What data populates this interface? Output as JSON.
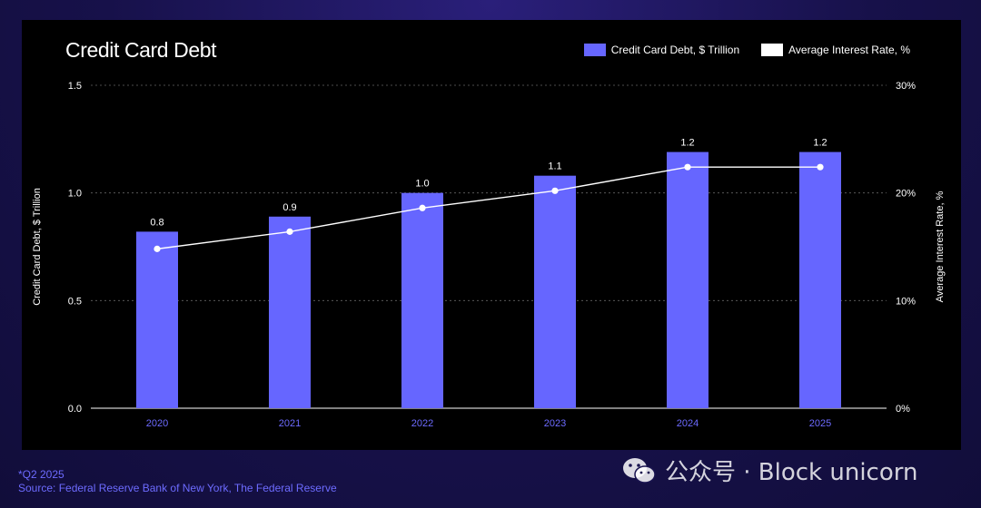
{
  "chart_data": {
    "type": "bar",
    "title": "Credit Card Debt",
    "categories": [
      "2020",
      "2021",
      "2022",
      "2023",
      "2024",
      "2025"
    ],
    "series": [
      {
        "name": "Credit Card Debt, $ Trillion",
        "type": "bar",
        "axis": "left",
        "values": [
          0.82,
          0.89,
          1.0,
          1.08,
          1.19,
          1.19
        ],
        "data_labels": [
          "0.8",
          "0.9",
          "1.0",
          "1.1",
          "1.2",
          "1.2"
        ],
        "color": "#6666ff"
      },
      {
        "name": "Average Interest Rate, %",
        "type": "line",
        "axis": "right",
        "values": [
          14.8,
          16.4,
          18.6,
          20.2,
          22.4,
          22.4
        ],
        "color": "#ffffff"
      }
    ],
    "ylabel": "Credit Card Debt, $ Trillion",
    "ylabel_right": "Average Interest Rate, %",
    "ylim": [
      0,
      1.5
    ],
    "yticks": [
      "0.0",
      "0.5",
      "1.0",
      "1.5"
    ],
    "ylim_right": [
      0,
      30
    ],
    "yticks_right": [
      "0%",
      "10%",
      "20%",
      "30%"
    ],
    "legend_position": "top-right",
    "grid": "horizontal dashed"
  },
  "footer": {
    "note": "*Q2 2025",
    "source": "Source: Federal Reserve Bank of New York, The Federal Reserve"
  },
  "watermark": {
    "text": "公众号 · Block unicorn",
    "icon": "wechat-icon"
  },
  "colors": {
    "background": "#17114a",
    "panel": "#000000",
    "bar": "#6666ff",
    "line": "#ffffff",
    "tick_x": "#6d6bff"
  }
}
